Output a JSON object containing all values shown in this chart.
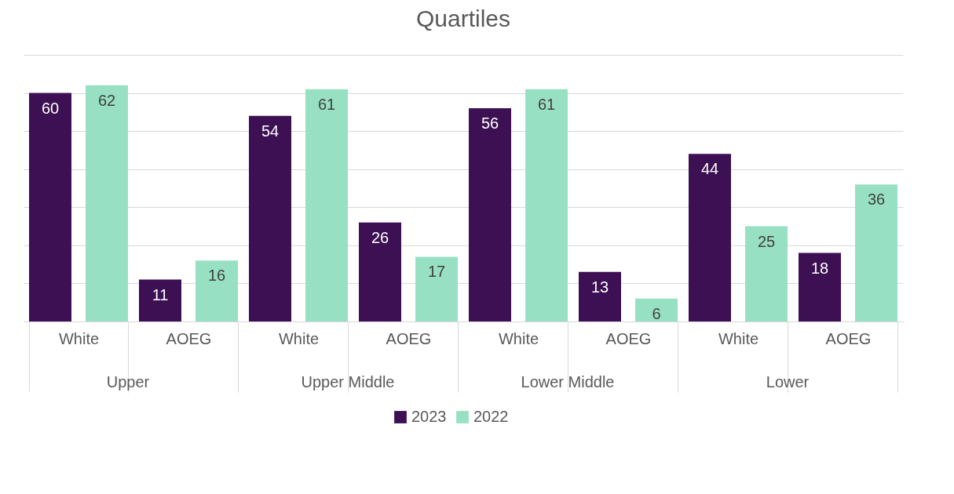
{
  "chart_data": {
    "type": "bar",
    "title": "Quartiles",
    "categories": [
      "White",
      "AOEG",
      "White",
      "AOEG",
      "White",
      "AOEG",
      "White",
      "AOEG"
    ],
    "annotations": [
      "Upper",
      "Upper Middle",
      "Lower Middle",
      "Lower"
    ],
    "series": [
      {
        "name": "2023",
        "color": "#3c1053",
        "values": [
          60,
          11,
          54,
          26,
          56,
          13,
          44,
          18
        ]
      },
      {
        "name": "2022",
        "color": "#98e0c4",
        "values": [
          62,
          16,
          61,
          17,
          61,
          6,
          25,
          36
        ]
      }
    ],
    "ylim": [
      0,
      70
    ],
    "yticks": [
      {
        "value": 0,
        "label": null
      },
      {
        "value": 10,
        "label": null
      },
      {
        "value": 20,
        "label": null
      },
      {
        "value": 30,
        "label": null
      },
      {
        "value": 40,
        "label": null
      },
      {
        "value": 50,
        "label": null
      },
      {
        "value": 60,
        "label": null
      },
      {
        "value": 70,
        "label": null
      }
    ],
    "tick_labels": "x",
    "grid": "y",
    "legend": "bottom",
    "data_labels": true
  }
}
